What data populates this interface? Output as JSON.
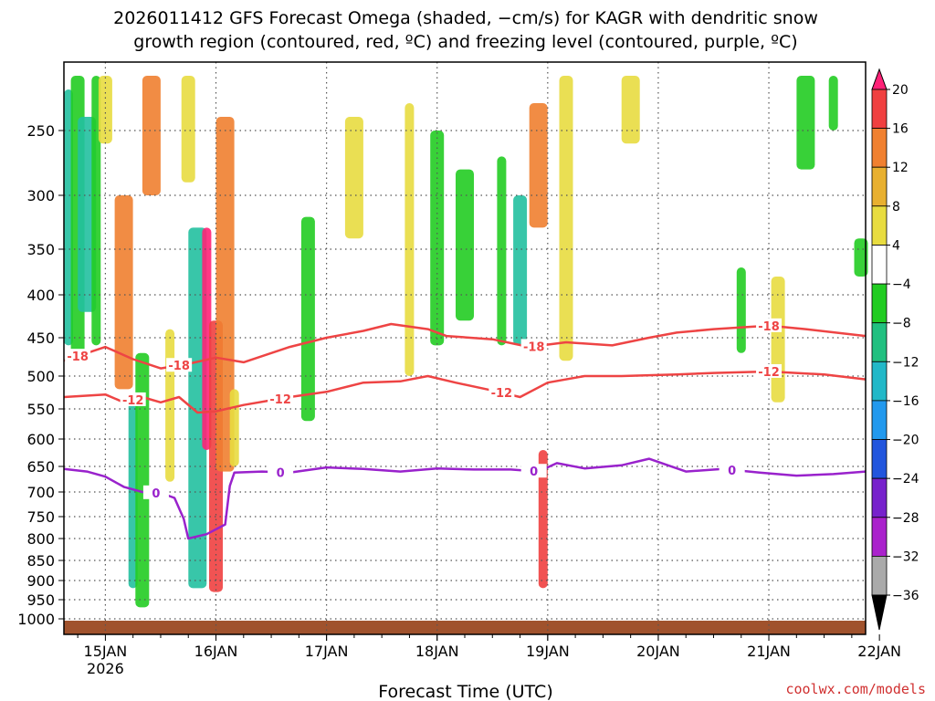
{
  "chart_data": {
    "type": "heatmap",
    "title_line1": "2026011412 GFS Forecast Omega (shaded, −cm/s) for KAGR with dendritic snow",
    "title_line2": "growth region (contoured, red, ºC) and freezing level (contoured, purple, ºC)",
    "xlabel": "Forecast Time (UTC)",
    "credit": "coolwx.com/models",
    "x_range_hours": [
      -9,
      165
    ],
    "x_ticks": [
      {
        "h": 0,
        "label": "15JAN",
        "sub": "2026"
      },
      {
        "h": 24,
        "label": "16JAN",
        "sub": ""
      },
      {
        "h": 48,
        "label": "17JAN",
        "sub": ""
      },
      {
        "h": 72,
        "label": "18JAN",
        "sub": ""
      },
      {
        "h": 96,
        "label": "19JAN",
        "sub": ""
      },
      {
        "h": 120,
        "label": "20JAN",
        "sub": ""
      },
      {
        "h": 144,
        "label": "21JAN",
        "sub": ""
      },
      {
        "h": 168,
        "label": "22JAN",
        "sub": ""
      }
    ],
    "y_ticks": [
      250,
      300,
      350,
      400,
      450,
      500,
      550,
      600,
      650,
      700,
      750,
      800,
      850,
      900,
      950,
      1000
    ],
    "y_range_hpa": [
      200,
      1020
    ],
    "colorbar": {
      "labels": [
        "20",
        "16",
        "12",
        "8",
        "4",
        "−4",
        "−8",
        "−12",
        "−16",
        "−20",
        "−24",
        "−28",
        "−32",
        "−36"
      ],
      "colors": [
        "#ff2277",
        "#f04040",
        "#f08030",
        "#e8b030",
        "#e8dc40",
        "#ffffff",
        "#22cc22",
        "#22c080",
        "#22b8c8",
        "#2299ee",
        "#2255dd",
        "#7722cc",
        "#aa22cc",
        "#aaaaaa",
        "#000000"
      ]
    },
    "omega_shading": [
      {
        "h": -8,
        "top": 220,
        "bot": 460,
        "band": "teal"
      },
      {
        "h": -6,
        "top": 210,
        "bot": 470,
        "band": "green"
      },
      {
        "h": -4,
        "top": 240,
        "bot": 420,
        "band": "teal"
      },
      {
        "h": -2,
        "top": 210,
        "bot": 460,
        "band": "green"
      },
      {
        "h": 0,
        "top": 210,
        "bot": 260,
        "band": "yellow"
      },
      {
        "h": 4,
        "top": 300,
        "bot": 520,
        "band": "orange"
      },
      {
        "h": 6,
        "top": 540,
        "bot": 920,
        "band": "teal"
      },
      {
        "h": 8,
        "top": 470,
        "bot": 970,
        "band": "green"
      },
      {
        "h": 10,
        "top": 210,
        "bot": 300,
        "band": "orange"
      },
      {
        "h": 14,
        "top": 440,
        "bot": 680,
        "band": "yellow"
      },
      {
        "h": 18,
        "top": 210,
        "bot": 290,
        "band": "yellow"
      },
      {
        "h": 20,
        "top": 330,
        "bot": 920,
        "band": "teal"
      },
      {
        "h": 22,
        "top": 330,
        "bot": 620,
        "band": "pink"
      },
      {
        "h": 24,
        "top": 430,
        "bot": 930,
        "band": "red"
      },
      {
        "h": 26,
        "top": 240,
        "bot": 660,
        "band": "orange"
      },
      {
        "h": 28,
        "top": 520,
        "bot": 650,
        "band": "yellow"
      },
      {
        "h": 44,
        "top": 320,
        "bot": 570,
        "band": "green"
      },
      {
        "h": 54,
        "top": 240,
        "bot": 340,
        "band": "yellow"
      },
      {
        "h": 66,
        "top": 230,
        "bot": 500,
        "band": "yellow"
      },
      {
        "h": 72,
        "top": 250,
        "bot": 460,
        "band": "green"
      },
      {
        "h": 78,
        "top": 280,
        "bot": 430,
        "band": "green"
      },
      {
        "h": 86,
        "top": 270,
        "bot": 460,
        "band": "green"
      },
      {
        "h": 90,
        "top": 300,
        "bot": 460,
        "band": "teal"
      },
      {
        "h": 94,
        "top": 230,
        "bot": 330,
        "band": "orange"
      },
      {
        "h": 95,
        "top": 620,
        "bot": 920,
        "band": "red"
      },
      {
        "h": 100,
        "top": 210,
        "bot": 480,
        "band": "yellow"
      },
      {
        "h": 114,
        "top": 210,
        "bot": 260,
        "band": "yellow"
      },
      {
        "h": 138,
        "top": 370,
        "bot": 470,
        "band": "green"
      },
      {
        "h": 146,
        "top": 380,
        "bot": 540,
        "band": "yellow"
      },
      {
        "h": 152,
        "top": 210,
        "bot": 280,
        "band": "green"
      },
      {
        "h": 158,
        "top": 210,
        "bot": 250,
        "band": "green"
      },
      {
        "h": 164,
        "top": 340,
        "bot": 380,
        "band": "green"
      }
    ],
    "contours": {
      "minus18": {
        "color": "#ee4444",
        "label": "-18",
        "label_hours": [
          -6,
          16,
          93,
          144
        ],
        "points": [
          [
            -9,
            480
          ],
          [
            -4,
            470
          ],
          [
            0,
            462
          ],
          [
            6,
            478
          ],
          [
            12,
            490
          ],
          [
            18,
            484
          ],
          [
            24,
            476
          ],
          [
            30,
            482
          ],
          [
            40,
            462
          ],
          [
            48,
            450
          ],
          [
            56,
            442
          ],
          [
            62,
            434
          ],
          [
            70,
            440
          ],
          [
            74,
            448
          ],
          [
            84,
            452
          ],
          [
            92,
            462
          ],
          [
            100,
            456
          ],
          [
            110,
            460
          ],
          [
            118,
            450
          ],
          [
            124,
            444
          ],
          [
            132,
            440
          ],
          [
            144,
            436
          ],
          [
            152,
            440
          ],
          [
            165,
            448
          ]
        ]
      },
      "minus12": {
        "color": "#ee4444",
        "label": "-12",
        "label_hours": [
          6,
          38,
          86,
          144
        ],
        "points": [
          [
            -9,
            532
          ],
          [
            0,
            528
          ],
          [
            4,
            540
          ],
          [
            8,
            532
          ],
          [
            12,
            540
          ],
          [
            16,
            532
          ],
          [
            20,
            556
          ],
          [
            24,
            554
          ],
          [
            30,
            544
          ],
          [
            40,
            532
          ],
          [
            48,
            524
          ],
          [
            56,
            510
          ],
          [
            64,
            508
          ],
          [
            70,
            500
          ],
          [
            76,
            510
          ],
          [
            84,
            522
          ],
          [
            90,
            532
          ],
          [
            96,
            510
          ],
          [
            104,
            500
          ],
          [
            112,
            500
          ],
          [
            124,
            498
          ],
          [
            132,
            496
          ],
          [
            144,
            494
          ],
          [
            156,
            498
          ],
          [
            165,
            505
          ]
        ]
      },
      "zero": {
        "color": "#9922cc",
        "label": "0",
        "label_hours": [
          11,
          38,
          93,
          136
        ],
        "points": [
          [
            -9,
            655
          ],
          [
            -4,
            660
          ],
          [
            0,
            670
          ],
          [
            4,
            690
          ],
          [
            8,
            700
          ],
          [
            12,
            702
          ],
          [
            15,
            712
          ],
          [
            17,
            755
          ],
          [
            18,
            800
          ],
          [
            22,
            790
          ],
          [
            26,
            768
          ],
          [
            27,
            688
          ],
          [
            28,
            662
          ],
          [
            34,
            660
          ],
          [
            40,
            662
          ],
          [
            48,
            652
          ],
          [
            56,
            655
          ],
          [
            64,
            660
          ],
          [
            72,
            654
          ],
          [
            80,
            656
          ],
          [
            88,
            656
          ],
          [
            94,
            660
          ],
          [
            98,
            644
          ],
          [
            104,
            654
          ],
          [
            112,
            648
          ],
          [
            118,
            636
          ],
          [
            126,
            660
          ],
          [
            134,
            655
          ],
          [
            142,
            662
          ],
          [
            150,
            668
          ],
          [
            158,
            665
          ],
          [
            165,
            660
          ]
        ]
      }
    },
    "terrain_color": "#a0522d"
  }
}
